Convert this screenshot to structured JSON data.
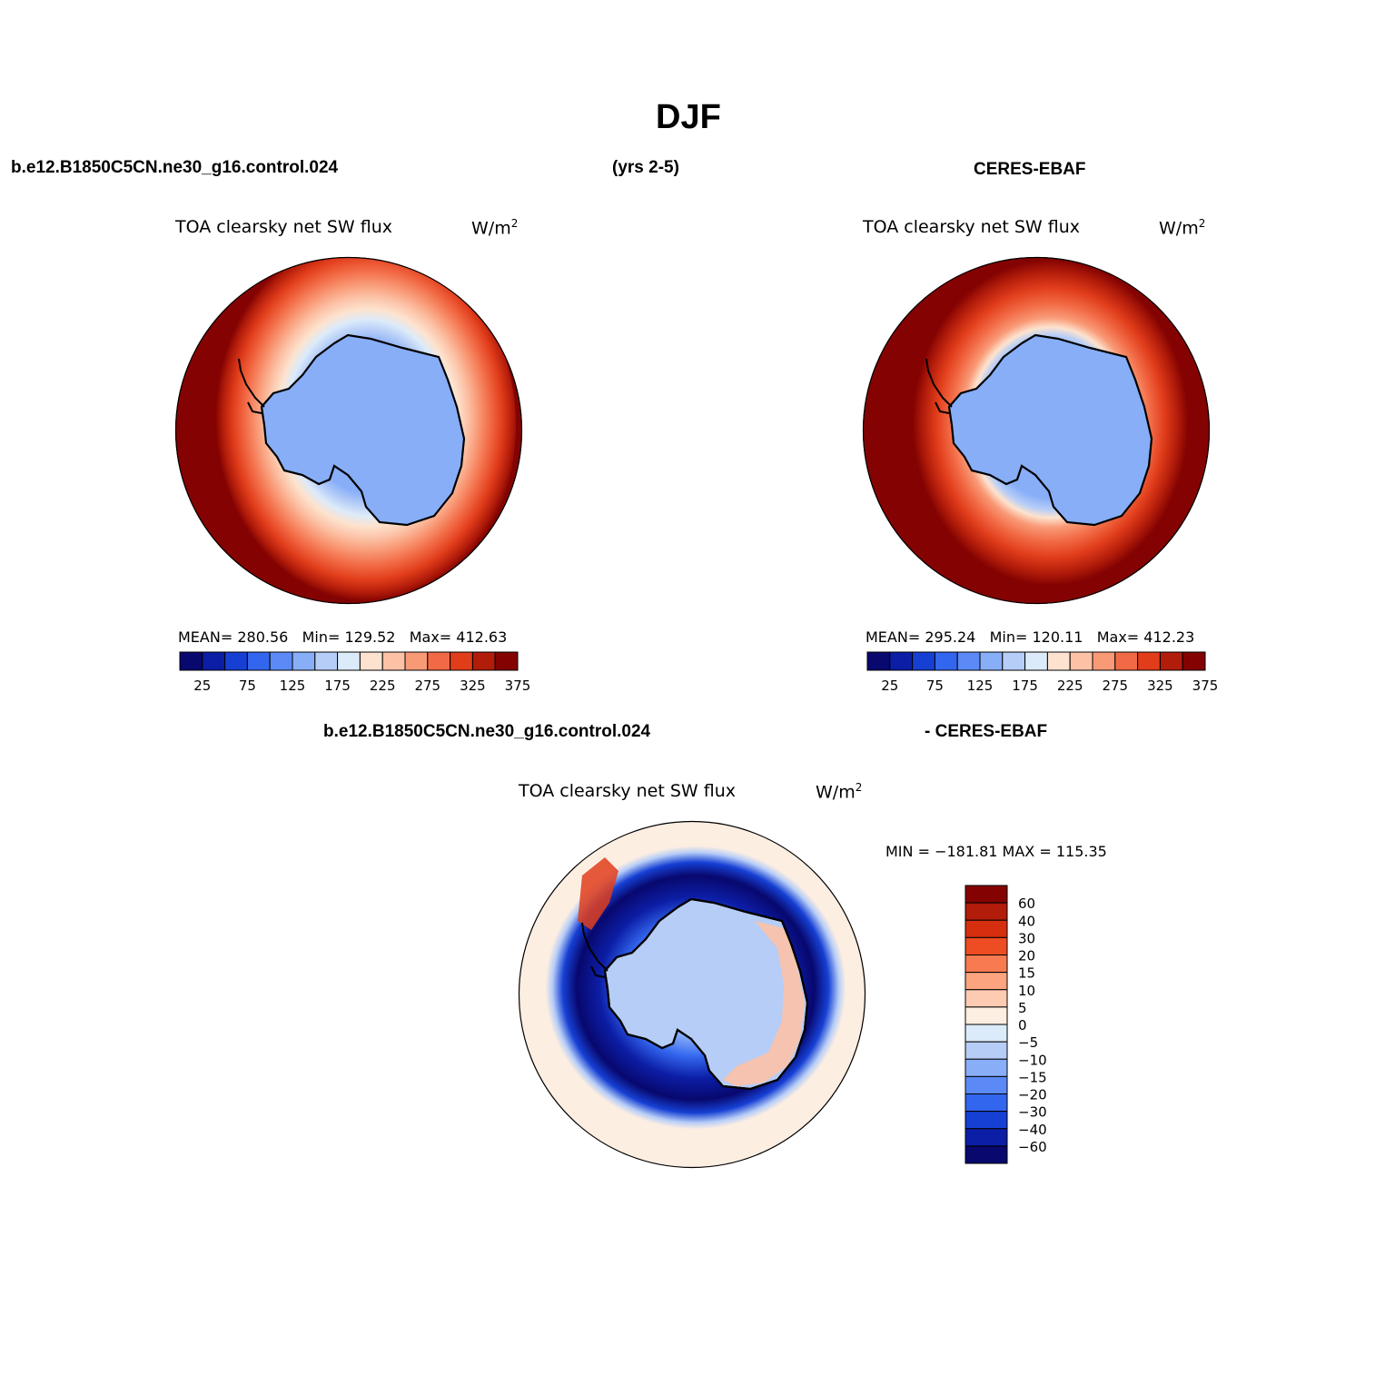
{
  "title": "DJF",
  "header": {
    "case": "b.e12.B1850C5CN.ne30_g16.control.024",
    "years": "(yrs 2-5)",
    "obs": "CERES-EBAF"
  },
  "diff_header": {
    "case": "b.e12.B1850C5CN.ne30_g16.control.024",
    "obs": "- CERES-EBAF"
  },
  "panels": [
    {
      "id": "model",
      "var_label": "TOA clearsky net SW flux",
      "unit_base": "W/m",
      "unit_exp": "2",
      "stats": {
        "mean_label": "MEAN=",
        "mean": "280.56",
        "min_label": "Min=",
        "min": "129.52",
        "max_label": "Max=",
        "max": "412.63"
      }
    },
    {
      "id": "obs",
      "var_label": "TOA clearsky net SW flux",
      "unit_base": "W/m",
      "unit_exp": "2",
      "stats": {
        "mean_label": "MEAN=",
        "mean": "295.24",
        "min_label": "Min=",
        "min": "120.11",
        "max_label": "Max=",
        "max": "412.23"
      }
    },
    {
      "id": "diff",
      "var_label": "TOA clearsky net SW flux",
      "unit_base": "W/m",
      "unit_exp": "2",
      "minmax_text": "MIN = −181.81 MAX = 115.35"
    }
  ],
  "colorbar_abs": {
    "colors": [
      "#08086e",
      "#0c1ea6",
      "#1640d4",
      "#3366ee",
      "#5b8af6",
      "#88aef8",
      "#b6cdf7",
      "#dcebfa",
      "#fde3cf",
      "#fcc2a6",
      "#f99a77",
      "#f26a45",
      "#e13d1b",
      "#b21c0a",
      "#840302"
    ],
    "labels": [
      "25",
      "75",
      "125",
      "175",
      "225",
      "275",
      "325",
      "375"
    ]
  },
  "colorbar_diff": {
    "colors": [
      "#840302",
      "#b21c0a",
      "#d62f10",
      "#ee4c22",
      "#f77a50",
      "#fba47f",
      "#fdcbb2",
      "#fdeee2",
      "#dcebfa",
      "#b6cdf7",
      "#88aef8",
      "#5b8af6",
      "#3366ee",
      "#1640d4",
      "#0c1ea6",
      "#08086e"
    ],
    "labels": [
      "60",
      "40",
      "30",
      "20",
      "15",
      "10",
      "5",
      "0",
      "−5",
      "−10",
      "−15",
      "−20",
      "−30",
      "−40",
      "−60"
    ]
  }
}
